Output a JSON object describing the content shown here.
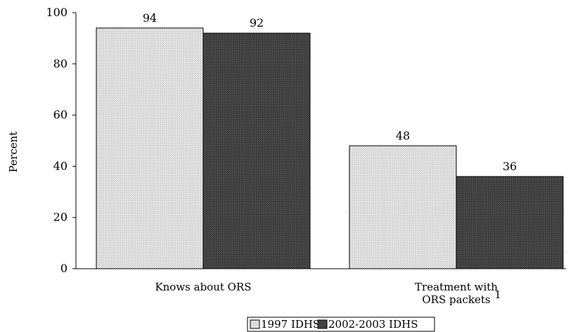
{
  "chart_data": {
    "type": "bar",
    "ylabel": "Percent",
    "xlabel": "",
    "ylim": [
      0,
      100
    ],
    "yticks": [
      "0",
      "20",
      "40",
      "60",
      "80",
      "100"
    ],
    "categories": [
      {
        "lines": [
          "Knows about ORS"
        ],
        "footnote": ""
      },
      {
        "lines": [
          "Treatment with",
          "ORS packets"
        ],
        "footnote": "1"
      }
    ],
    "series": [
      {
        "name": "1997 IDHS",
        "values": [
          94,
          48
        ],
        "color": "#d9d9d9"
      },
      {
        "name": "2002-2003 IDHS",
        "values": [
          92,
          36
        ],
        "color": "#3c3c3c"
      }
    ],
    "grid": false,
    "legend_position": "bottom-center"
  }
}
